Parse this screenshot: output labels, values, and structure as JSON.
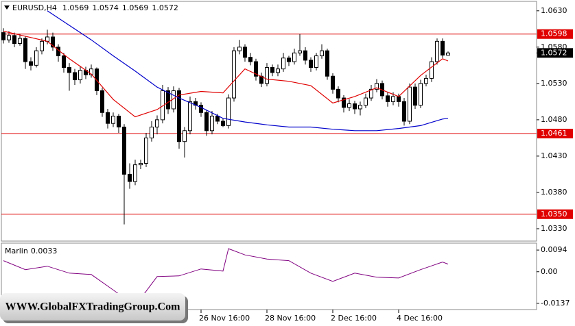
{
  "chart_data": [
    {
      "type": "candlestick",
      "title": "EURUSD,H4",
      "candles": [
        [
          1.06,
          1.0606,
          1.0585,
          1.059
        ],
        [
          1.059,
          1.0602,
          1.0586,
          1.0596
        ],
        [
          1.0596,
          1.06,
          1.058,
          1.0585
        ],
        [
          1.0585,
          1.0598,
          1.0582,
          1.0592
        ],
        [
          1.0592,
          1.0595,
          1.055,
          1.056
        ],
        [
          1.056,
          1.0566,
          1.0548,
          1.0555
        ],
        [
          1.0555,
          1.058,
          1.0552,
          1.0575
        ],
        [
          1.0575,
          1.0592,
          1.057,
          1.0588
        ],
        [
          1.0588,
          1.0604,
          1.0584,
          1.0594
        ],
        [
          1.0594,
          1.06,
          1.0575,
          1.058
        ],
        [
          1.058,
          1.0584,
          1.056,
          1.0568
        ],
        [
          1.0568,
          1.0572,
          1.0545,
          1.0552
        ],
        [
          1.0552,
          1.0558,
          1.052,
          1.0545
        ],
        [
          1.0545,
          1.055,
          1.0528,
          1.0535
        ],
        [
          1.0535,
          1.0554,
          1.053,
          1.0548
        ],
        [
          1.0548,
          1.0553,
          1.0536,
          1.0542
        ],
        [
          1.0542,
          1.0556,
          1.0538,
          1.055
        ],
        [
          1.055,
          1.0552,
          1.0514,
          1.052
        ],
        [
          1.052,
          1.0524,
          1.0484,
          1.049
        ],
        [
          1.049,
          1.0495,
          1.0468,
          1.0475
        ],
        [
          1.0475,
          1.049,
          1.047,
          1.0485
        ],
        [
          1.0485,
          1.0488,
          1.0462,
          1.047
        ],
        [
          1.047,
          1.0474,
          1.0336,
          1.0405
        ],
        [
          1.0405,
          1.042,
          1.0385,
          1.0395
        ],
        [
          1.0395,
          1.0425,
          1.039,
          1.0418
        ],
        [
          1.0418,
          1.0425,
          1.0412,
          1.042
        ],
        [
          1.042,
          1.0462,
          1.0415,
          1.0455
        ],
        [
          1.0455,
          1.0478,
          1.045,
          1.047
        ],
        [
          1.047,
          1.0486,
          1.046,
          1.048
        ],
        [
          1.048,
          1.0528,
          1.0475,
          1.052
        ],
        [
          1.052,
          1.0525,
          1.0488,
          1.0495
        ],
        [
          1.0495,
          1.0526,
          1.049,
          1.052
        ],
        [
          1.052,
          1.0524,
          1.044,
          1.045
        ],
        [
          1.045,
          1.047,
          1.0428,
          1.0465
        ],
        [
          1.0465,
          1.0512,
          1.046,
          1.0505
        ],
        [
          1.0505,
          1.051,
          1.0494,
          1.05
        ],
        [
          1.05,
          1.0504,
          1.0484,
          1.049
        ],
        [
          1.049,
          1.0494,
          1.0458,
          1.0465
        ],
        [
          1.0465,
          1.0492,
          1.046,
          1.0485
        ],
        [
          1.0485,
          1.0488,
          1.0474,
          1.0478
        ],
        [
          1.0478,
          1.0482,
          1.047,
          1.0472
        ],
        [
          1.0472,
          1.0515,
          1.0468,
          1.051
        ],
        [
          1.051,
          1.058,
          1.0505,
          1.0575
        ],
        [
          1.0575,
          1.059,
          1.057,
          1.058
        ],
        [
          1.058,
          1.0584,
          1.056,
          1.0566
        ],
        [
          1.0566,
          1.0572,
          1.0555,
          1.056
        ],
        [
          1.056,
          1.0564,
          1.0534,
          1.054
        ],
        [
          1.054,
          1.0545,
          1.0525,
          1.053
        ],
        [
          1.053,
          1.0558,
          1.0526,
          1.0552
        ],
        [
          1.0552,
          1.0556,
          1.054,
          1.0545
        ],
        [
          1.0545,
          1.0556,
          1.054,
          1.055
        ],
        [
          1.055,
          1.0572,
          1.0546,
          1.0565
        ],
        [
          1.0565,
          1.0568,
          1.0554,
          1.056
        ],
        [
          1.056,
          1.0578,
          1.0556,
          1.0572
        ],
        [
          1.0572,
          1.0598,
          1.0568,
          1.0575
        ],
        [
          1.0575,
          1.058,
          1.0556,
          1.0562
        ],
        [
          1.0562,
          1.0566,
          1.0546,
          1.0552
        ],
        [
          1.0552,
          1.0572,
          1.0548,
          1.0568
        ],
        [
          1.0568,
          1.0584,
          1.0564,
          1.0575
        ],
        [
          1.0575,
          1.0578,
          1.0535,
          1.054
        ],
        [
          1.054,
          1.0544,
          1.0516,
          1.0522
        ],
        [
          1.0522,
          1.0526,
          1.0504,
          1.051
        ],
        [
          1.051,
          1.0514,
          1.049,
          1.0497
        ],
        [
          1.0497,
          1.0508,
          1.0492,
          1.0502
        ],
        [
          1.0502,
          1.0506,
          1.0488,
          1.0495
        ],
        [
          1.0495,
          1.0505,
          1.0486,
          1.05
        ],
        [
          1.05,
          1.0516,
          1.0496,
          1.051
        ],
        [
          1.051,
          1.0528,
          1.0506,
          1.0522
        ],
        [
          1.0522,
          1.0536,
          1.0518,
          1.053
        ],
        [
          1.053,
          1.0534,
          1.0508,
          1.0513
        ],
        [
          1.0513,
          1.0518,
          1.0498,
          1.0505
        ],
        [
          1.0505,
          1.0518,
          1.05,
          1.0512
        ],
        [
          1.0512,
          1.0516,
          1.0498,
          1.0505
        ],
        [
          1.0505,
          1.051,
          1.0472,
          1.0478
        ],
        [
          1.0478,
          1.053,
          1.0474,
          1.0525
        ],
        [
          1.0525,
          1.053,
          1.0495,
          1.05
        ],
        [
          1.05,
          1.0535,
          1.0496,
          1.053
        ],
        [
          1.053,
          1.0542,
          1.0526,
          1.0537
        ],
        [
          1.0537,
          1.0566,
          1.0532,
          1.056
        ],
        [
          1.056,
          1.0592,
          1.0556,
          1.0588
        ],
        [
          1.0588,
          1.0592,
          1.0565,
          1.0569
        ],
        [
          1.0569,
          1.0574,
          1.0569,
          1.0572
        ]
      ],
      "bull_color": "#ffffff",
      "bear_color": "#000000",
      "lines": [
        {
          "color": "#e00000",
          "x": [
            0,
            4,
            8,
            12,
            16,
            20,
            24,
            28,
            32,
            36,
            40,
            44,
            48,
            52,
            56,
            60,
            64,
            68,
            72,
            76,
            80,
            81
          ],
          "values": [
            1.0602,
            1.0595,
            1.0588,
            1.0564,
            1.0543,
            1.0508,
            1.0484,
            1.0494,
            1.0514,
            1.0519,
            1.0517,
            1.055,
            1.0536,
            1.0533,
            1.0527,
            1.0503,
            1.0512,
            1.0524,
            1.0512,
            1.0541,
            1.0564,
            1.0561
          ]
        },
        {
          "color": "#0000cc",
          "x": [
            8,
            12,
            16,
            20,
            24,
            28,
            32,
            36,
            40,
            44,
            48,
            52,
            56,
            60,
            64,
            68,
            72,
            76,
            80,
            81
          ],
          "values": [
            1.063,
            1.061,
            1.059,
            1.0568,
            1.0547,
            1.0525,
            1.051,
            1.0497,
            1.0482,
            1.0477,
            1.0473,
            1.047,
            1.047,
            1.0467,
            1.0465,
            1.0465,
            1.0468,
            1.0472,
            1.0481,
            1.0482
          ]
        }
      ],
      "levels": [
        1.0598,
        1.0461,
        {
          "value": 1.035,
          "label": "1.0350"
        }
      ],
      "level_color": "#e00000",
      "xlim": [
        -0.375,
        97.125
      ],
      "xticks": [
        {
          "value": 36,
          "label": "26 Nov 16:00"
        },
        {
          "value": 48,
          "label": "28 Nov 16:00"
        },
        {
          "value": 60,
          "label": "2 Dec 16:00"
        },
        {
          "value": 72,
          "label": "4 Dec 16:00"
        }
      ],
      "ylim": [
        1.0313,
        1.0643
      ],
      "yticks": [
        {
          "value": 1.063,
          "label": "1.0630"
        },
        {
          "value": 1.058,
          "label": "1.0580"
        },
        {
          "value": 1.053,
          "label": "1.0530"
        },
        {
          "value": 1.048,
          "label": "1.0480"
        },
        {
          "value": 1.043,
          "label": "1.0430"
        },
        {
          "value": 1.038,
          "label": "1.0380"
        },
        {
          "value": 1.033,
          "label": "1.0330"
        }
      ]
    },
    {
      "type": "line",
      "title": "Marlin",
      "color": "#800080",
      "x": [
        0,
        4,
        8,
        12,
        16,
        20,
        24,
        28,
        32,
        36,
        40,
        41,
        44,
        48,
        52,
        56,
        60,
        64,
        68,
        72,
        76,
        80,
        81
      ],
      "values": [
        0.0048,
        0.0009,
        0.0024,
        -0.0006,
        -0.0012,
        -0.0079,
        -0.0148,
        -0.0021,
        -0.0018,
        0.0012,
        0.0003,
        0.01,
        0.0073,
        0.0055,
        0.0048,
        -0.0006,
        -0.0042,
        -0.0006,
        -0.0024,
        -0.0027,
        0.0009,
        0.0042,
        0.0033
      ],
      "ylim": [
        -0.0164,
        0.0124
      ],
      "yticks": [
        0.0094,
        {
          "value": 0,
          "label": "0.00"
        },
        -0.0137
      ]
    }
  ],
  "watermark": "WWW.GlobalFXTradingGroup.Com"
}
